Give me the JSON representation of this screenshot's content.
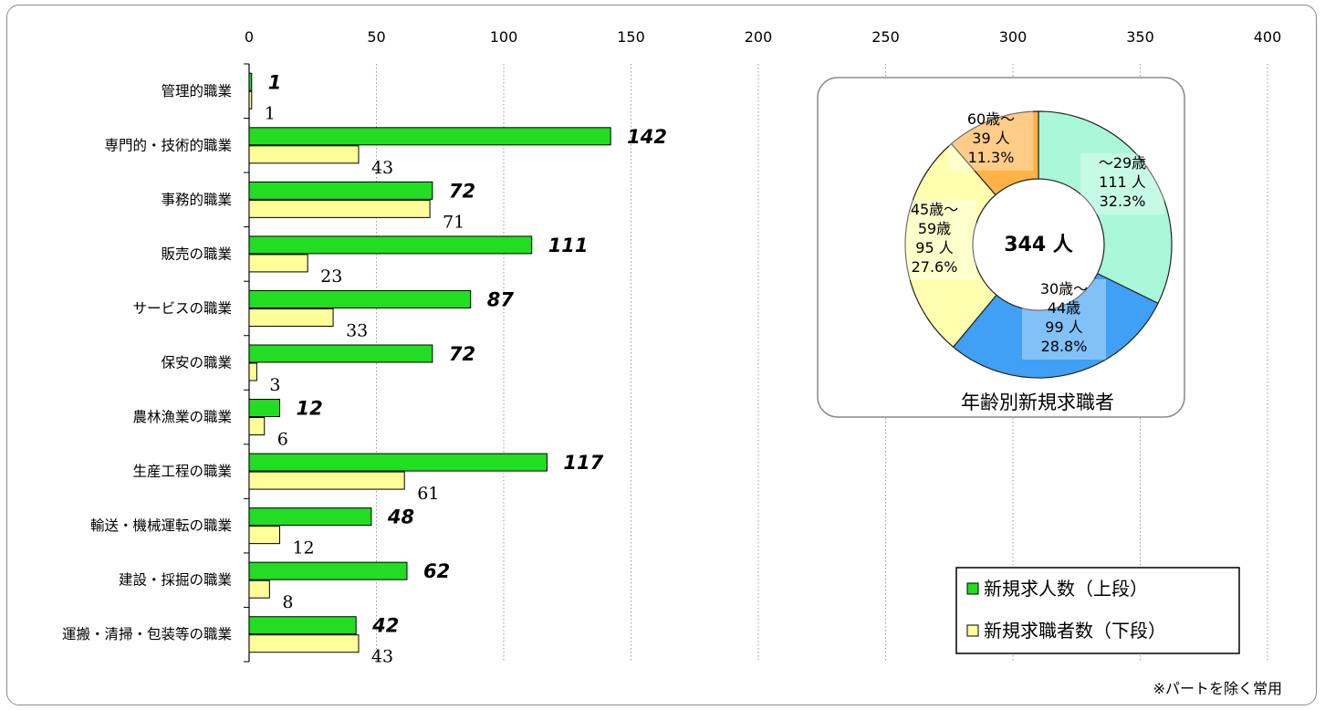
{
  "colors": {
    "new_openings": "#22dd22",
    "new_seekers": "#ffff99",
    "pie": [
      "#aaf7d9",
      "#3fa0f5",
      "#ffffb0",
      "#ffb347"
    ]
  },
  "chart_data": [
    {
      "type": "bar",
      "orientation": "horizontal",
      "categories": [
        "管理的職業",
        "専門的・技術的職業",
        "事務的職業",
        "販売の職業",
        "サービスの職業",
        "保安の職業",
        "農林漁業の職業",
        "生産工程の職業",
        "輸送・機械運転の職業",
        "建設・採掘の職業",
        "運搬・清掃・包装等の職業"
      ],
      "series": [
        {
          "name": "新規求人数（上段）",
          "values": [
            1,
            142,
            72,
            111,
            87,
            72,
            12,
            117,
            48,
            62,
            42
          ],
          "value_labels": [
            "1",
            "142",
            "72",
            "111",
            "87",
            "72",
            "12",
            "117",
            "48",
            "62",
            "42"
          ]
        },
        {
          "name": "新規求職者数（下段）",
          "values": [
            1,
            43,
            71,
            23,
            33,
            3,
            6,
            61,
            12,
            8,
            43
          ],
          "value_labels": [
            "1",
            "43",
            "71",
            "23",
            "33",
            "3",
            "6",
            "61",
            "12",
            "8",
            "43"
          ]
        }
      ],
      "xlim": [
        0,
        400
      ],
      "xticks": [
        0,
        50,
        100,
        150,
        200,
        250,
        300,
        350,
        400
      ],
      "xtick_labels": [
        "0",
        "50",
        "100",
        "150",
        "200",
        "250",
        "300",
        "350",
        "400"
      ],
      "grid": true,
      "legend_position": "bottom-right"
    },
    {
      "type": "pie",
      "donut": true,
      "title": "年齢別新規求職者",
      "center_label": "344 人",
      "slices": [
        {
          "lines": [
            "～29歳",
            "111  人",
            "32.3%"
          ],
          "value": 111
        },
        {
          "lines": [
            "30歳～",
            "44歳",
            "99  人",
            "28.8%"
          ],
          "value": 99
        },
        {
          "lines": [
            "45歳～",
            "59歳",
            "95  人",
            "27.6%"
          ],
          "value": 95
        },
        {
          "lines": [
            "60歳～",
            "39  人",
            "11.3%"
          ],
          "value": 39
        }
      ]
    }
  ],
  "note": "※パートを除く常用"
}
